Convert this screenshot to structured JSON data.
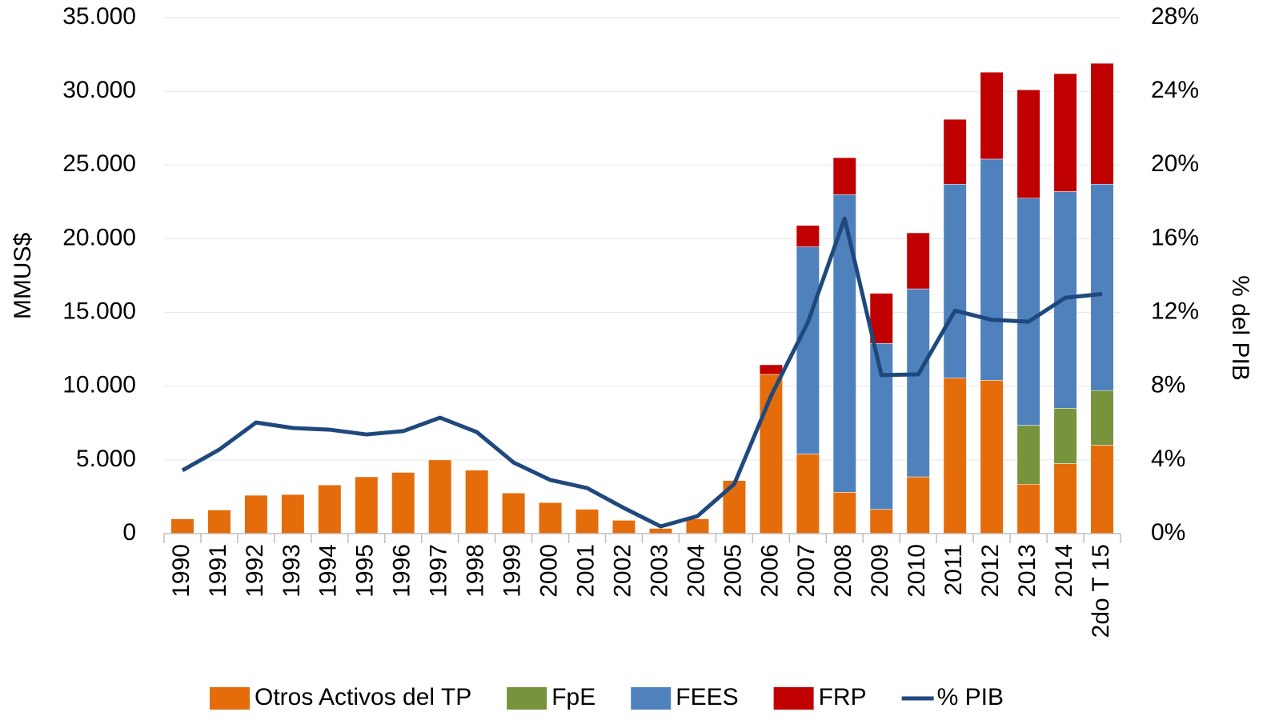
{
  "chart_data": {
    "type": "bar",
    "stacked": true,
    "categories": [
      "1990",
      "1991",
      "1992",
      "1993",
      "1994",
      "1995",
      "1996",
      "1997",
      "1998",
      "1999",
      "2000",
      "2001",
      "2002",
      "2003",
      "2004",
      "2005",
      "2006",
      "2007",
      "2008",
      "2009",
      "2010",
      "2011",
      "2012",
      "2013",
      "2014",
      "2do T 15"
    ],
    "series": [
      {
        "name": "Otros Activos del TP",
        "color": "#e46c0a",
        "values": [
          1000,
          1600,
          2600,
          2650,
          3300,
          3850,
          4150,
          5000,
          4300,
          2750,
          2100,
          1650,
          900,
          350,
          1000,
          3600,
          10800,
          5400,
          2800,
          1650,
          3850,
          10550,
          10400,
          3350,
          4750,
          6000
        ]
      },
      {
        "name": "FpE",
        "color": "#77933c",
        "values": [
          null,
          null,
          null,
          null,
          null,
          null,
          null,
          null,
          null,
          null,
          null,
          null,
          null,
          null,
          null,
          null,
          null,
          null,
          null,
          null,
          null,
          null,
          null,
          4000,
          3750,
          3700
        ]
      },
      {
        "name": "FEES",
        "color": "#4f81bd",
        "values": [
          null,
          null,
          null,
          null,
          null,
          null,
          null,
          null,
          null,
          null,
          null,
          null,
          null,
          null,
          null,
          null,
          null,
          14050,
          20200,
          11250,
          12750,
          13150,
          15000,
          15400,
          14700,
          14000
        ]
      },
      {
        "name": "FRP",
        "color": "#c00000",
        "values": [
          null,
          null,
          null,
          null,
          null,
          null,
          null,
          null,
          null,
          null,
          null,
          null,
          null,
          null,
          null,
          null,
          650,
          1450,
          2500,
          3400,
          3800,
          4400,
          5900,
          7350,
          8000,
          8200
        ]
      },
      {
        "name": "% PIB",
        "type": "line",
        "axis": "y2",
        "color": "#1f497d",
        "values": [
          3.43,
          4.56,
          6.03,
          5.73,
          5.64,
          5.38,
          5.56,
          6.29,
          5.51,
          3.86,
          2.91,
          2.47,
          1.39,
          0.39,
          0.95,
          2.69,
          7.47,
          11.46,
          17.1,
          8.6,
          8.64,
          12.1,
          11.6,
          11.5,
          12.8,
          13.0
        ]
      }
    ],
    "y_label": "MMUS$",
    "y2_label": "% del PIB",
    "ylim": [
      0,
      35000
    ],
    "yticks": [
      0,
      {
        "value": 5000,
        "label": "5.000"
      },
      {
        "value": 10000,
        "label": "10.000"
      },
      {
        "value": 15000,
        "label": "15.000"
      },
      {
        "value": 20000,
        "label": "20.000"
      },
      {
        "value": 25000,
        "label": "25.000"
      },
      {
        "value": 30000,
        "label": "30.000"
      },
      {
        "value": 35000,
        "label": "35.000"
      }
    ],
    "y2lim": [
      0,
      28
    ],
    "y2ticks": [
      {
        "value": 0,
        "label": "0%"
      },
      {
        "value": 4,
        "label": "4%"
      },
      {
        "value": 8,
        "label": "8%"
      },
      {
        "value": 12,
        "label": "12%"
      },
      {
        "value": 16,
        "label": "16%"
      },
      {
        "value": 20,
        "label": "20%"
      },
      {
        "value": 24,
        "label": "24%"
      },
      {
        "value": 28,
        "label": "28%"
      }
    ],
    "grid": true,
    "legend": "bottom"
  }
}
